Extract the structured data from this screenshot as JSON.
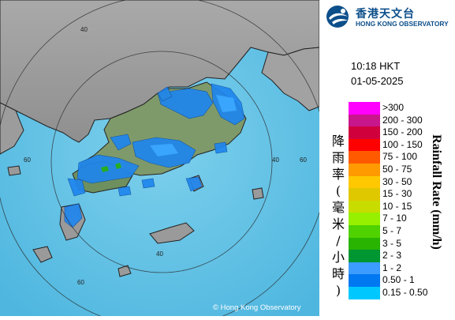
{
  "header": {
    "org_name_cn": "香港天文台",
    "org_name_en": "HONG KONG OBSERVATORY"
  },
  "timestamp": {
    "time": "10:18 HKT",
    "date": "01-05-2025"
  },
  "legend": {
    "title_cn": [
      "降",
      "雨",
      "率",
      "(",
      "毫",
      "米",
      "/",
      "小",
      "時",
      ")"
    ],
    "title_en": "Rainfall Rate (mm/h)",
    "items": [
      {
        "label": ">300",
        "color": "#ff00ff"
      },
      {
        "label": "200 - 300",
        "color": "#c8168c"
      },
      {
        "label": "150 - 200",
        "color": "#d0003c"
      },
      {
        "label": "100 - 150",
        "color": "#ff0000"
      },
      {
        "label": "75 - 100",
        "color": "#ff5a00"
      },
      {
        "label": "50 - 75",
        "color": "#ff9a00"
      },
      {
        "label": "30 - 50",
        "color": "#ffc800"
      },
      {
        "label": "15 - 30",
        "color": "#e0c800"
      },
      {
        "label": "10 - 15",
        "color": "#c8dc00"
      },
      {
        "label": "7 - 10",
        "color": "#96f000"
      },
      {
        "label": "5 - 7",
        "color": "#50d200"
      },
      {
        "label": "3 - 5",
        "color": "#28b400"
      },
      {
        "label": "2 - 3",
        "color": "#009632"
      },
      {
        "label": "1 - 2",
        "color": "#3c9cff"
      },
      {
        "label": "0.50 - 1",
        "color": "#0078f0"
      },
      {
        "label": "0.15 - 0.50",
        "color": "#00c8ff"
      }
    ]
  },
  "map": {
    "ring_labels": [
      "40",
      "60",
      "40",
      "60",
      "40",
      "60"
    ],
    "copyright": "© Hong Kong Observatory"
  }
}
